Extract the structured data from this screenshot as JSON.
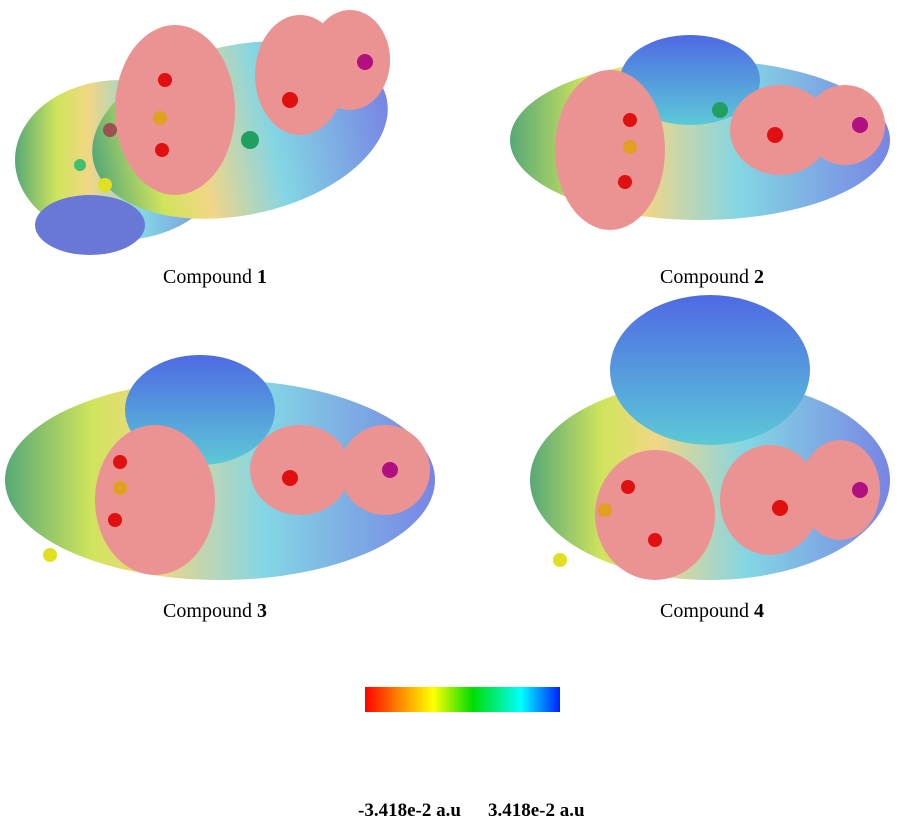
{
  "figures": [
    {
      "caption": "Compound",
      "number": 1
    },
    {
      "caption": "Compound",
      "number": 2
    },
    {
      "caption": "Compound",
      "number": 3
    },
    {
      "caption": "Compound",
      "number": 4
    }
  ],
  "color_scale": {
    "min_label": "-3.418e-2 a.u",
    "max_label": "3.418e-2 a.u"
  }
}
